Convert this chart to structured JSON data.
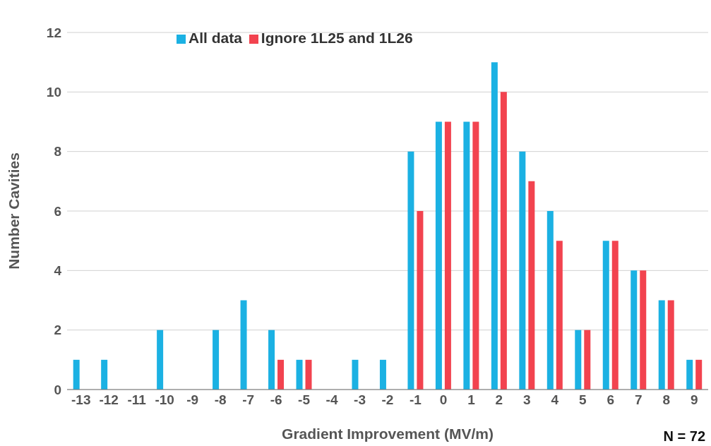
{
  "chart_data": {
    "type": "bar",
    "xlabel": "Gradient Improvement (MV/m)",
    "ylabel": "Number Cavities",
    "categories": [
      "-13",
      "-12",
      "-11",
      "-10",
      "-9",
      "-8",
      "-7",
      "-6",
      "-5",
      "-4",
      "-3",
      "-2",
      "-1",
      "0",
      "1",
      "2",
      "3",
      "4",
      "5",
      "6",
      "7",
      "8",
      "9"
    ],
    "series": [
      {
        "name": "All data",
        "color": "#1bb1e3",
        "values": [
          1,
          1,
          0,
          2,
          0,
          2,
          3,
          2,
          1,
          0,
          1,
          1,
          8,
          9,
          9,
          11,
          8,
          6,
          2,
          5,
          4,
          3,
          1
        ]
      },
      {
        "name": "Ignore 1L25 and 1L26",
        "color": "#f2434f",
        "values": [
          0,
          0,
          0,
          0,
          0,
          0,
          0,
          1,
          1,
          0,
          0,
          0,
          6,
          9,
          9,
          10,
          7,
          5,
          2,
          5,
          4,
          3,
          1
        ]
      }
    ],
    "ylim": [
      0,
      12
    ],
    "yticks": [
      0,
      2,
      4,
      6,
      8,
      10,
      12
    ],
    "grid": "y",
    "legend": "top left",
    "annotations": [
      "N = 72"
    ]
  }
}
